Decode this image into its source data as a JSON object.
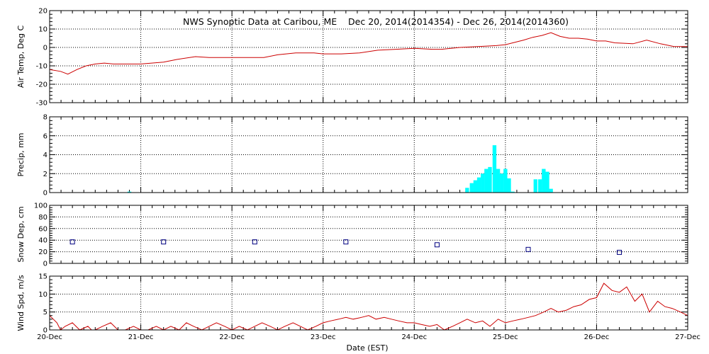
{
  "chart_data": {
    "title": "NWS Synoptic Data at Caribou, ME    Dec 20, 2014(2014354) - Dec 26, 2014(2014360)",
    "xlabel": "Date (EST)",
    "x_range_days": [
      0,
      7
    ],
    "x_tick_labels": [
      "20-Dec",
      "21-Dec",
      "22-Dec",
      "23-Dec",
      "24-Dec",
      "25-Dec",
      "26-Dec",
      "27-Dec"
    ],
    "panels": [
      {
        "type": "line",
        "ylabel": "Air Temp, Deg C",
        "ylim": [
          -30,
          20
        ],
        "y_ticks": [
          -30,
          -20,
          -10,
          0,
          10,
          20
        ],
        "color": "#cc0000",
        "x": [
          0,
          0.12,
          0.2,
          0.3,
          0.4,
          0.5,
          0.6,
          0.7,
          0.8,
          1.0,
          1.25,
          1.4,
          1.6,
          1.75,
          2.0,
          2.2,
          2.35,
          2.5,
          2.7,
          2.9,
          3.0,
          3.2,
          3.4,
          3.6,
          3.8,
          4.0,
          4.2,
          4.3,
          4.5,
          4.7,
          4.9,
          5.0,
          5.2,
          5.3,
          5.4,
          5.5,
          5.6,
          5.7,
          5.8,
          5.9,
          6.0,
          6.1,
          6.2,
          6.4,
          6.55,
          6.7,
          6.85,
          7.0
        ],
        "y": [
          -12,
          -13,
          -14.5,
          -12,
          -10,
          -9,
          -8.5,
          -9,
          -9,
          -9,
          -8,
          -6.5,
          -5,
          -5.5,
          -5.5,
          -5.5,
          -5.5,
          -4,
          -3,
          -3,
          -3.5,
          -3.5,
          -3,
          -1.5,
          -1,
          -0.5,
          -1,
          -1,
          0,
          0.5,
          1,
          1.5,
          4,
          5.5,
          6.5,
          8,
          6,
          5,
          5,
          4.5,
          3.5,
          3.5,
          2.5,
          2,
          4,
          2,
          0.5,
          0.5
        ]
      },
      {
        "type": "bar",
        "ylabel": "Precip, mm",
        "ylim": [
          0,
          8
        ],
        "y_ticks": [
          0,
          2,
          4,
          6,
          8
        ],
        "color": "#00ffff",
        "bin_width_days": 0.0417,
        "x": [
          0.875,
          4.58,
          4.63,
          4.67,
          4.71,
          4.75,
          4.79,
          4.83,
          4.88,
          4.92,
          4.96,
          5.0,
          5.04,
          5.08,
          5.33,
          5.38,
          5.42,
          5.46,
          5.5
        ],
        "y": [
          0.1,
          0.5,
          1.0,
          1.3,
          1.6,
          2.0,
          2.5,
          2.7,
          5.0,
          2.5,
          2.0,
          2.5,
          1.5,
          0.1,
          1.4,
          1.4,
          2.5,
          2.2,
          0.4
        ]
      },
      {
        "type": "scatter",
        "ylabel": "Snow Dep, cm",
        "ylim": [
          0,
          100
        ],
        "y_ticks": [
          0,
          20,
          40,
          60,
          80,
          100
        ],
        "color": "#000080",
        "x": [
          0.25,
          1.25,
          2.25,
          3.25,
          4.25,
          5.25,
          6.25
        ],
        "y": [
          37,
          37,
          37,
          37,
          32,
          24,
          19
        ]
      },
      {
        "type": "line",
        "ylabel": "Wind Spd, m/s",
        "ylim": [
          0,
          15
        ],
        "y_ticks": [
          0,
          5,
          10,
          15
        ],
        "color": "#cc0000",
        "x": [
          0,
          0.08,
          0.12,
          0.17,
          0.25,
          0.33,
          0.42,
          0.46,
          0.5,
          0.58,
          0.67,
          0.75,
          0.83,
          0.92,
          1.0,
          1.08,
          1.17,
          1.25,
          1.33,
          1.42,
          1.5,
          1.58,
          1.67,
          1.75,
          1.83,
          1.92,
          2.0,
          2.08,
          2.17,
          2.25,
          2.33,
          2.42,
          2.5,
          2.58,
          2.67,
          2.75,
          2.83,
          2.92,
          3.0,
          3.08,
          3.17,
          3.25,
          3.33,
          3.42,
          3.5,
          3.58,
          3.67,
          3.75,
          3.83,
          3.92,
          4.0,
          4.08,
          4.17,
          4.25,
          4.33,
          4.42,
          4.5,
          4.58,
          4.67,
          4.75,
          4.83,
          4.92,
          5.0,
          5.08,
          5.17,
          5.25,
          5.33,
          5.42,
          5.5,
          5.58,
          5.67,
          5.75,
          5.83,
          5.92,
          6.0,
          6.08,
          6.17,
          6.25,
          6.33,
          6.42,
          6.5,
          6.58,
          6.67,
          6.75,
          6.83,
          6.92,
          7.0
        ],
        "y": [
          4,
          2,
          0,
          1,
          2,
          0,
          1,
          0,
          0,
          1,
          2,
          0,
          0,
          1,
          0,
          0,
          1,
          0,
          1,
          0,
          2,
          1,
          0,
          1,
          2,
          1,
          0,
          1,
          0,
          1,
          2,
          1,
          0,
          1,
          2,
          1,
          0,
          1,
          2,
          2.5,
          3,
          3.5,
          3,
          3.5,
          4,
          3,
          3.5,
          3,
          2.5,
          2,
          2,
          1.5,
          1,
          1.5,
          0,
          1,
          2,
          3,
          2,
          2.5,
          1,
          3,
          2,
          2.5,
          3,
          3.5,
          4,
          5,
          6,
          5,
          5.5,
          6.5,
          7,
          8.5,
          9,
          13,
          11,
          10.5,
          12,
          8,
          10,
          5,
          8,
          6.5,
          6,
          5,
          4
        ]
      }
    ]
  }
}
